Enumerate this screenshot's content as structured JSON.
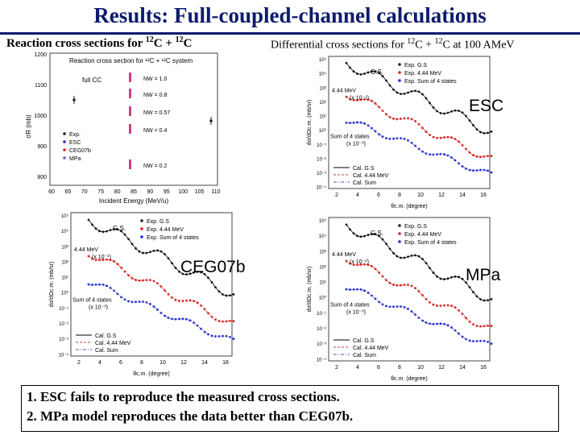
{
  "header": {
    "title": "Results: Full-coupled-channel calculations",
    "left_caption": "Reaction cross sections for ",
    "left_nuclei": {
      "a": "12",
      "a_el": "C + ",
      "b": "12",
      "b_el": "C"
    },
    "right_caption": "Differential cross sections for ",
    "right_nuclei": {
      "a": "12",
      "a_el": "C + ",
      "b": "12",
      "b_el": "C at 100 AMeV"
    }
  },
  "reaction_panel": {
    "legend_title": "Reaction cross section for ¹²C + ¹²C system",
    "fullcc": "full CC",
    "ylabel": "σR (mb)",
    "xlabel": "Incident Energy (MeV/u)",
    "yticks": [
      "1200",
      "1100",
      "1000",
      "900",
      "800"
    ],
    "xticks": [
      "60",
      "65",
      "70",
      "75",
      "80",
      "85",
      "90",
      "95",
      "100",
      "105",
      "110"
    ],
    "nw": [
      "NW = 1.0",
      "NW = 0.8",
      "NW = 0.57",
      "NW = 0.4",
      "NW = 0.2"
    ],
    "legend": [
      "Exp.",
      "ESC",
      "CEG07b",
      "MPa"
    ]
  },
  "diff_panels": {
    "ylabel": "dσ/dΩc.m. (mb/sr)",
    "xlabel": "θc.m. (degree)",
    "xticks": [
      "2",
      "4",
      "6",
      "8",
      "10",
      "12",
      "14",
      "16"
    ],
    "yticks": [
      "10⁵",
      "10⁴",
      "10³",
      "10²",
      "10¹",
      "10⁰",
      "10⁻¹",
      "10⁻²",
      "10⁻³",
      "10⁻⁴"
    ],
    "gs": "G.S.",
    "mev": "4.44 MeV",
    "mev_scale": "(x 10⁻¹)",
    "sum": "Sum of 4 states",
    "sum_scale": "(x 10⁻³)",
    "exp_legend": [
      "Exp. G.S",
      "Exp. 4.44 MeV",
      "Exp. Sum of 4 states"
    ],
    "cal_legend": [
      "Cal. G.S",
      "Cal. 4.44 MeV",
      "Cal. Sum"
    ]
  },
  "models": {
    "esc": "ESC",
    "ceg": "CEG07b",
    "mpa": "MPa"
  },
  "colors": {
    "title": "#0d1b6e",
    "gs": "#222222",
    "mev": "#e02020",
    "sum": "#1f2fd6"
  },
  "notes": [
    "1. ESC fails to reproduce the measured cross sections.",
    "2. MPa model reproduces the data better than CEG07b."
  ]
}
